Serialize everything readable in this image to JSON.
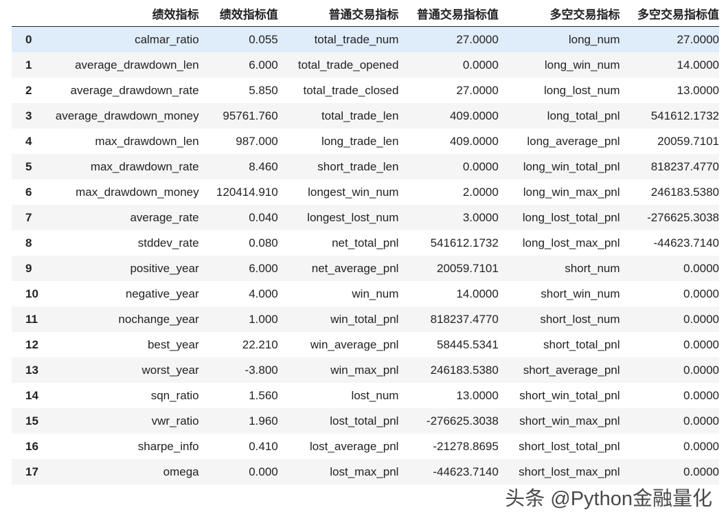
{
  "columns": [
    "",
    "绩效指标",
    "绩效指标值",
    "普通交易指标",
    "普通交易指标值",
    "多空交易指标",
    "多空交易指标值"
  ],
  "rows": [
    [
      "0",
      "calmar_ratio",
      "0.055",
      "total_trade_num",
      "27.0000",
      "long_num",
      "27.0000"
    ],
    [
      "1",
      "average_drawdown_len",
      "6.000",
      "total_trade_opened",
      "0.0000",
      "long_win_num",
      "14.0000"
    ],
    [
      "2",
      "average_drawdown_rate",
      "5.850",
      "total_trade_closed",
      "27.0000",
      "long_lost_num",
      "13.0000"
    ],
    [
      "3",
      "average_drawdown_money",
      "95761.760",
      "total_trade_len",
      "409.0000",
      "long_total_pnl",
      "541612.1732"
    ],
    [
      "4",
      "max_drawdown_len",
      "987.000",
      "long_trade_len",
      "409.0000",
      "long_average_pnl",
      "20059.7101"
    ],
    [
      "5",
      "max_drawdown_rate",
      "8.460",
      "short_trade_len",
      "0.0000",
      "long_win_total_pnl",
      "818237.4770"
    ],
    [
      "6",
      "max_drawdown_money",
      "120414.910",
      "longest_win_num",
      "2.0000",
      "long_win_max_pnl",
      "246183.5380"
    ],
    [
      "7",
      "average_rate",
      "0.040",
      "longest_lost_num",
      "3.0000",
      "long_lost_total_pnl",
      "-276625.3038"
    ],
    [
      "8",
      "stddev_rate",
      "0.080",
      "net_total_pnl",
      "541612.1732",
      "long_lost_max_pnl",
      "-44623.7140"
    ],
    [
      "9",
      "positive_year",
      "6.000",
      "net_average_pnl",
      "20059.7101",
      "short_num",
      "0.0000"
    ],
    [
      "10",
      "negative_year",
      "4.000",
      "win_num",
      "14.0000",
      "short_win_num",
      "0.0000"
    ],
    [
      "11",
      "nochange_year",
      "1.000",
      "win_total_pnl",
      "818237.4770",
      "short_lost_num",
      "0.0000"
    ],
    [
      "12",
      "best_year",
      "22.210",
      "win_average_pnl",
      "58445.5341",
      "short_total_pnl",
      "0.0000"
    ],
    [
      "13",
      "worst_year",
      "-3.800",
      "win_max_pnl",
      "246183.5380",
      "short_average_pnl",
      "0.0000"
    ],
    [
      "14",
      "sqn_ratio",
      "1.560",
      "lost_num",
      "13.0000",
      "short_win_total_pnl",
      "0.0000"
    ],
    [
      "15",
      "vwr_ratio",
      "1.960",
      "lost_total_pnl",
      "-276625.3038",
      "short_win_max_pnl",
      "0.0000"
    ],
    [
      "16",
      "sharpe_info",
      "0.410",
      "lost_average_pnl",
      "-21278.8695",
      "short_lost_total_pnl",
      "0.0000"
    ],
    [
      "17",
      "omega",
      "0.000",
      "lost_max_pnl",
      "-44623.7140",
      "short_lost_max_pnl",
      "0.0000"
    ]
  ],
  "highlighted_row": 0,
  "colors": {
    "hover_row": "#dfecfa",
    "stripe": "#f5f5f5"
  },
  "watermark": "头条 @Python金融量化"
}
